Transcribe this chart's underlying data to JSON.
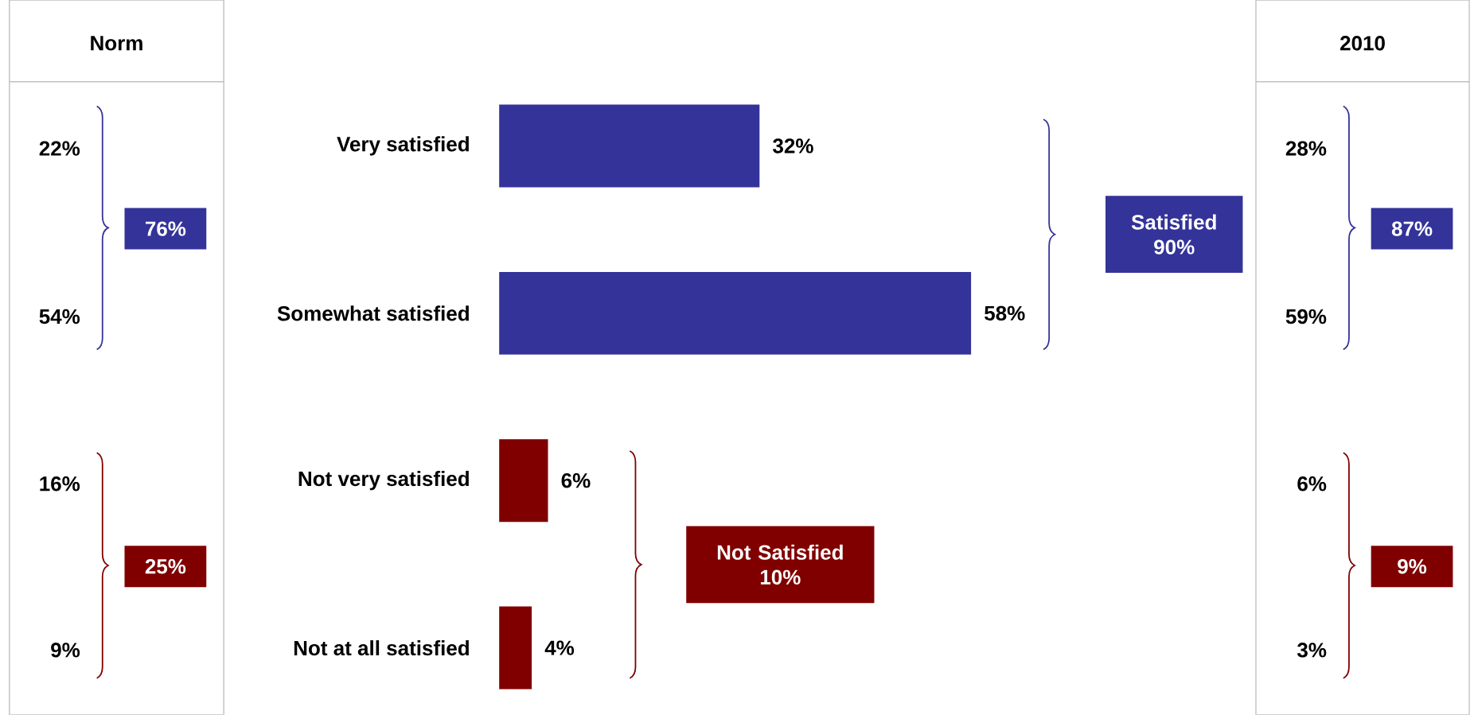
{
  "chart_data": [
    {
      "type": "other",
      "title": "Norm",
      "annotations": [
        "22%",
        "54%",
        "76%",
        "16%",
        "9%",
        "25%"
      ],
      "colors": [
        "#333399",
        "#800000"
      ]
    },
    {
      "type": "bar",
      "orientation": "horizontal",
      "categories": [
        "Very satisfied",
        "Somewhat satisfied",
        "Not very satisfied",
        "Not at all satisfied"
      ],
      "values": [
        32,
        58,
        6,
        4
      ],
      "colors": [
        "#333399",
        "#333399",
        "#800000",
        "#800000"
      ],
      "value_labels": [
        "32%",
        "58%",
        "6%",
        "4%"
      ],
      "annotations": [
        "Satisfied 90%",
        "Not Satisfied 10%"
      ]
    },
    {
      "type": "other",
      "title": "2010",
      "annotations": [
        "28%",
        "59%",
        "87%",
        "6%",
        "3%",
        "9%"
      ],
      "colors": [
        "#333399",
        "#800000"
      ]
    }
  ]
}
